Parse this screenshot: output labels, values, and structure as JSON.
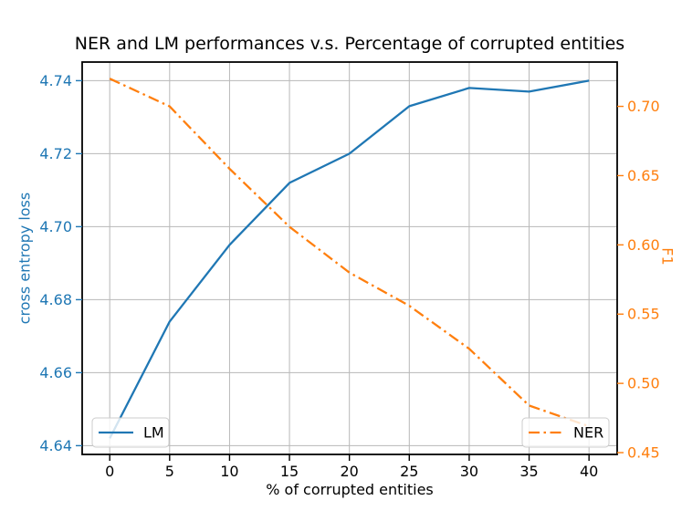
{
  "chart_data": {
    "type": "line",
    "title": "NER and LM performances v.s. Percentage of corrupted entities",
    "xlabel": "% of corrupted entities",
    "ylabel_left": "cross entropy loss",
    "ylabel_right": "F1",
    "x": [
      0,
      5,
      10,
      15,
      20,
      25,
      30,
      35,
      40
    ],
    "series": [
      {
        "name": "LM",
        "axis": "left",
        "color": "#1f77b4",
        "style": "solid",
        "values": [
          4.642,
          4.674,
          4.695,
          4.712,
          4.72,
          4.733,
          4.738,
          4.737,
          4.74
        ]
      },
      {
        "name": "NER",
        "axis": "right",
        "color": "#ff7f0e",
        "style": "dashdot",
        "values": [
          0.72,
          0.7,
          0.655,
          0.613,
          0.58,
          0.556,
          0.525,
          0.484,
          0.469
        ]
      }
    ],
    "x_ticks": [
      0,
      5,
      10,
      15,
      20,
      25,
      30,
      35,
      40
    ],
    "left_ticks": [
      "4.64",
      "4.66",
      "4.68",
      "4.70",
      "4.72",
      "4.74"
    ],
    "right_ticks": [
      "0.45",
      "0.50",
      "0.55",
      "0.60",
      "0.65",
      "0.70"
    ],
    "xlim": [
      -2.3,
      42.35
    ],
    "ylim_left": [
      4.6376,
      4.7451
    ],
    "ylim_right": [
      0.4487,
      0.732
    ],
    "grid": true,
    "legend": [
      {
        "label": "LM",
        "position": "lower-left"
      },
      {
        "label": "NER",
        "position": "lower-right"
      }
    ],
    "colors": {
      "left_axis": "#1f77b4",
      "right_axis": "#ff7f0e",
      "x_axis": "#000000",
      "grid": "#b8b8b8",
      "spine": "#000000",
      "legend_border": "#cccccc"
    }
  }
}
